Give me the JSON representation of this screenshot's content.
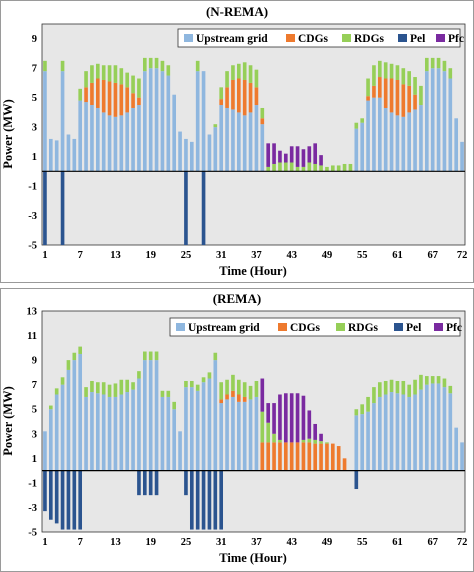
{
  "colors": {
    "Upstream grid": "#8fb7df",
    "CDGs": "#ee7a2e",
    "RDGs": "#96cf58",
    "Pel": "#2b548f",
    "Pfc": "#7a2aa0"
  },
  "chart_data": [
    {
      "type": "bar",
      "stacked": true,
      "title": "(N-REMA)",
      "xlabel": "Time (Hour)",
      "ylabel": "Power (MW)",
      "ylim": [
        -5,
        10
      ],
      "yticks": [
        "9",
        "7",
        "5",
        "3",
        "1",
        "-1",
        "-3",
        "-5"
      ],
      "xticks": [
        "1",
        "7",
        "13",
        "19",
        "25",
        "31",
        "37",
        "43",
        "49",
        "55",
        "61",
        "67",
        "72"
      ],
      "legend": [
        "Upstream grid",
        "CDGs",
        "RDGs",
        "Pel",
        "Pfc"
      ],
      "legend_position": "top-right",
      "hours": 72,
      "series": [
        {
          "name": "Upstream grid",
          "values": [
            6.8,
            2.2,
            2.1,
            6.8,
            2.5,
            2.2,
            4.8,
            4.7,
            4.5,
            4.3,
            4.0,
            3.8,
            3.7,
            3.8,
            4.0,
            4.3,
            4.5,
            6.8,
            7.0,
            7.0,
            6.8,
            6.5,
            5.2,
            2.7,
            2.2,
            2.0,
            6.8,
            6.8,
            2.5,
            3.0,
            4.5,
            4.3,
            4.2,
            4.0,
            3.8,
            4.0,
            4.5,
            3.2,
            0,
            0,
            0,
            0,
            0,
            0,
            0,
            0,
            0,
            0,
            0,
            0,
            0,
            0,
            0,
            2.9,
            3.3,
            4.8,
            5.0,
            5.0,
            4.3,
            4.0,
            3.8,
            3.7,
            4.0,
            4.2,
            4.5,
            6.8,
            7.0,
            7.0,
            6.8,
            6.3,
            3.6,
            2.0
          ]
        },
        {
          "name": "CDGs",
          "values": [
            0,
            0,
            0,
            0,
            0,
            0,
            0,
            1.0,
            1.5,
            2.0,
            2.2,
            2.3,
            2.3,
            2.1,
            1.7,
            1.0,
            0.5,
            0,
            0,
            0,
            0,
            0,
            0,
            0,
            0,
            0,
            0,
            0,
            0,
            0,
            0.4,
            1.4,
            2.0,
            2.3,
            2.4,
            2.0,
            1.2,
            0.4,
            0,
            0,
            0,
            0,
            0,
            0,
            0,
            0,
            0,
            0,
            0,
            0,
            0,
            0,
            0,
            0,
            0,
            0.3,
            0.8,
            1.4,
            2.0,
            2.3,
            2.4,
            2.2,
            1.8,
            1.0,
            0,
            0,
            0,
            0,
            0,
            0,
            0,
            0
          ]
        },
        {
          "name": "RDGs",
          "values": [
            0.7,
            0,
            0,
            0.7,
            0,
            0,
            0.8,
            1.1,
            1.2,
            1.0,
            1.0,
            1.1,
            1.2,
            1.1,
            1.0,
            1.2,
            1.3,
            0.9,
            0.7,
            0.7,
            0.7,
            0.7,
            0,
            0,
            0,
            0,
            0.7,
            0,
            0,
            0.2,
            0.8,
            1.1,
            1.0,
            1.0,
            1.2,
            1.2,
            1.2,
            0.7,
            0.3,
            0.5,
            0.6,
            0.6,
            0.6,
            0.3,
            0.3,
            0.6,
            0.5,
            0.4,
            0.3,
            0.4,
            0.4,
            0.5,
            0.5,
            0.4,
            0.3,
            1.2,
            1.4,
            1.1,
            1.1,
            1.0,
            1.0,
            1.1,
            1.0,
            1.2,
            1.3,
            0.9,
            0.7,
            0.7,
            0.7,
            0.7,
            0,
            0
          ]
        },
        {
          "name": "Pel",
          "values": [
            -5,
            0,
            0,
            -5,
            0,
            0,
            0,
            0,
            0,
            0,
            0,
            0,
            0,
            0,
            0,
            0,
            0,
            0,
            0,
            0,
            0,
            0,
            0,
            0,
            -5,
            0,
            0,
            -5,
            0,
            0,
            0,
            0,
            0,
            0,
            0,
            0,
            0,
            0,
            0,
            0,
            0,
            0,
            0,
            0,
            0,
            0,
            0,
            0,
            0,
            0,
            0,
            0,
            0,
            0,
            0,
            0,
            0,
            0,
            0,
            0,
            0,
            0,
            0,
            0,
            0,
            0,
            0,
            0,
            0,
            0,
            0,
            0
          ]
        },
        {
          "name": "Pfc",
          "values": [
            0,
            0,
            0,
            0,
            0,
            0,
            0,
            0,
            0,
            0,
            0,
            0,
            0,
            0,
            0,
            0,
            0,
            0,
            0,
            0,
            0,
            0,
            0,
            0,
            0,
            0,
            0,
            0,
            0,
            0,
            0,
            0,
            0,
            0,
            0,
            0,
            0,
            0,
            1.6,
            1.4,
            0.8,
            0.6,
            1.1,
            1.4,
            1.2,
            1.1,
            1.4,
            0.7,
            0,
            0,
            0,
            0,
            0,
            0,
            0,
            0,
            0,
            0,
            0,
            0,
            0,
            0,
            0,
            0,
            0,
            0,
            0,
            0,
            0,
            0,
            0,
            0
          ]
        }
      ]
    },
    {
      "type": "bar",
      "stacked": true,
      "title": "(REMA)",
      "xlabel": "Time (Hour)",
      "ylabel": "Power (MW)",
      "ylim": [
        -5,
        13
      ],
      "yticks": [
        "13",
        "11",
        "9",
        "7",
        "5",
        "3",
        "1",
        "-1",
        "-3",
        "-5"
      ],
      "xticks": [
        "1",
        "7",
        "13",
        "19",
        "25",
        "31",
        "37",
        "43",
        "49",
        "55",
        "61",
        "67",
        "72"
      ],
      "legend": [
        "Upstream grid",
        "CDGs",
        "RDGs",
        "Pel",
        "Pfc"
      ],
      "legend_position": "top-right",
      "hours": 72,
      "series": [
        {
          "name": "Upstream grid",
          "values": [
            3.2,
            5.0,
            6.2,
            7.0,
            8.2,
            9.0,
            9.5,
            6.0,
            6.4,
            6.3,
            6.2,
            6.0,
            6.0,
            6.2,
            6.4,
            6.6,
            7.5,
            9.0,
            9.0,
            9.0,
            6.0,
            6.0,
            5.0,
            3.2,
            6.8,
            6.8,
            6.5,
            7.2,
            7.5,
            9.0,
            5.5,
            5.8,
            6.0,
            5.6,
            5.6,
            5.8,
            6.0,
            0,
            0,
            0,
            0,
            0,
            0,
            0,
            0,
            0,
            0,
            0,
            0,
            0,
            0,
            0,
            0,
            4.5,
            4.6,
            4.8,
            5.5,
            6.0,
            6.2,
            6.4,
            6.3,
            6.2,
            6.0,
            6.2,
            6.6,
            7.0,
            7.1,
            7.1,
            6.8,
            6.3,
            3.5,
            2.3
          ]
        },
        {
          "name": "CDGs",
          "values": [
            0,
            0,
            0,
            0,
            0,
            0,
            0,
            0,
            0,
            0,
            0,
            0,
            0,
            0,
            0,
            0,
            0,
            0,
            0,
            0,
            0,
            0,
            0,
            0,
            0,
            0,
            0,
            0,
            0,
            0,
            0.3,
            0.4,
            0.5,
            0.6,
            0.4,
            0,
            0,
            2.3,
            2.3,
            2.3,
            2.3,
            2.3,
            2.3,
            2.3,
            2.3,
            2.3,
            2.2,
            2.2,
            2.2,
            2.2,
            2.0,
            1.0,
            0,
            0,
            0,
            0,
            0,
            0,
            0,
            0,
            0,
            0,
            0,
            0,
            0,
            0,
            0,
            0,
            0,
            0,
            0,
            0
          ]
        },
        {
          "name": "RDGs",
          "values": [
            0,
            0.3,
            0.5,
            0.6,
            0.8,
            0.6,
            0.6,
            0.8,
            0.9,
            0.9,
            1.0,
            1.0,
            1.1,
            1.2,
            1.0,
            0.6,
            0.6,
            0.7,
            0.7,
            0.7,
            0.5,
            0.5,
            0.6,
            0,
            0.5,
            0.5,
            0.5,
            0.4,
            0.5,
            0.6,
            1.4,
            1.2,
            1.3,
            1.2,
            1.2,
            1.1,
            1.3,
            2.5,
            1.6,
            0.7,
            0.2,
            0,
            0,
            0,
            0.2,
            0.3,
            0.3,
            0.2,
            0.1,
            0,
            0,
            0,
            0,
            0.5,
            0.8,
            1.2,
            1.3,
            1.2,
            1.1,
            1.0,
            1.0,
            1.1,
            1.0,
            1.2,
            1.2,
            0.7,
            0.6,
            0.6,
            0.7,
            0.6,
            0,
            0
          ]
        },
        {
          "name": "Pel",
          "values": [
            -3.3,
            -4.0,
            -4.3,
            -4.8,
            -4.8,
            -4.8,
            -4.8,
            0,
            0,
            0,
            0,
            0,
            0,
            0,
            0,
            0,
            -2.0,
            -2.0,
            -2.0,
            -2.0,
            0,
            0,
            0,
            0,
            -2.0,
            -4.8,
            -4.8,
            -4.8,
            -4.8,
            -4.8,
            -4.8,
            0,
            0,
            0,
            0,
            0,
            0,
            0,
            0,
            0,
            0,
            0,
            0,
            0,
            0,
            0,
            0,
            0,
            0,
            0,
            0,
            0,
            0,
            -1.5,
            0,
            0,
            0,
            0,
            0,
            0,
            0,
            0,
            0,
            0,
            0,
            0,
            0,
            0,
            0,
            0,
            0,
            0
          ]
        },
        {
          "name": "Pfc",
          "values": [
            0,
            0,
            0,
            0,
            0,
            0,
            0,
            0,
            0,
            0,
            0,
            0,
            0,
            0,
            0,
            0,
            0,
            0,
            0,
            0,
            0,
            0,
            0,
            0,
            0,
            0,
            0,
            0,
            0,
            0,
            0,
            0,
            0,
            0,
            0,
            0,
            0,
            2.7,
            1.6,
            2.5,
            3.7,
            4.0,
            4.0,
            4.0,
            3.6,
            2.3,
            1.3,
            0.6,
            0,
            0,
            0,
            0,
            0,
            0,
            0,
            0,
            0,
            0,
            0,
            0,
            0,
            0,
            0,
            0,
            0,
            0,
            0,
            0,
            0,
            0,
            0,
            0
          ]
        }
      ]
    }
  ]
}
